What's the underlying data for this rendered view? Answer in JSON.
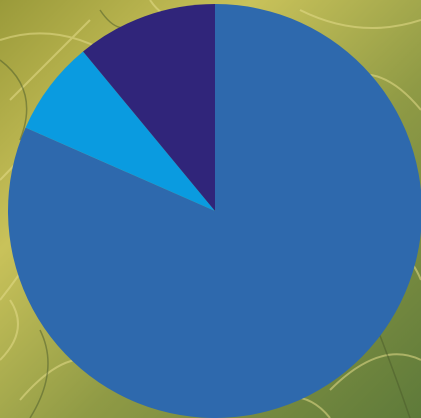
{
  "chart_data": {
    "type": "pie",
    "values": [
      81.6,
      7.4,
      11.0
    ],
    "colors": [
      "#2e69ad",
      "#0a9be0",
      "#30257a"
    ]
  }
}
